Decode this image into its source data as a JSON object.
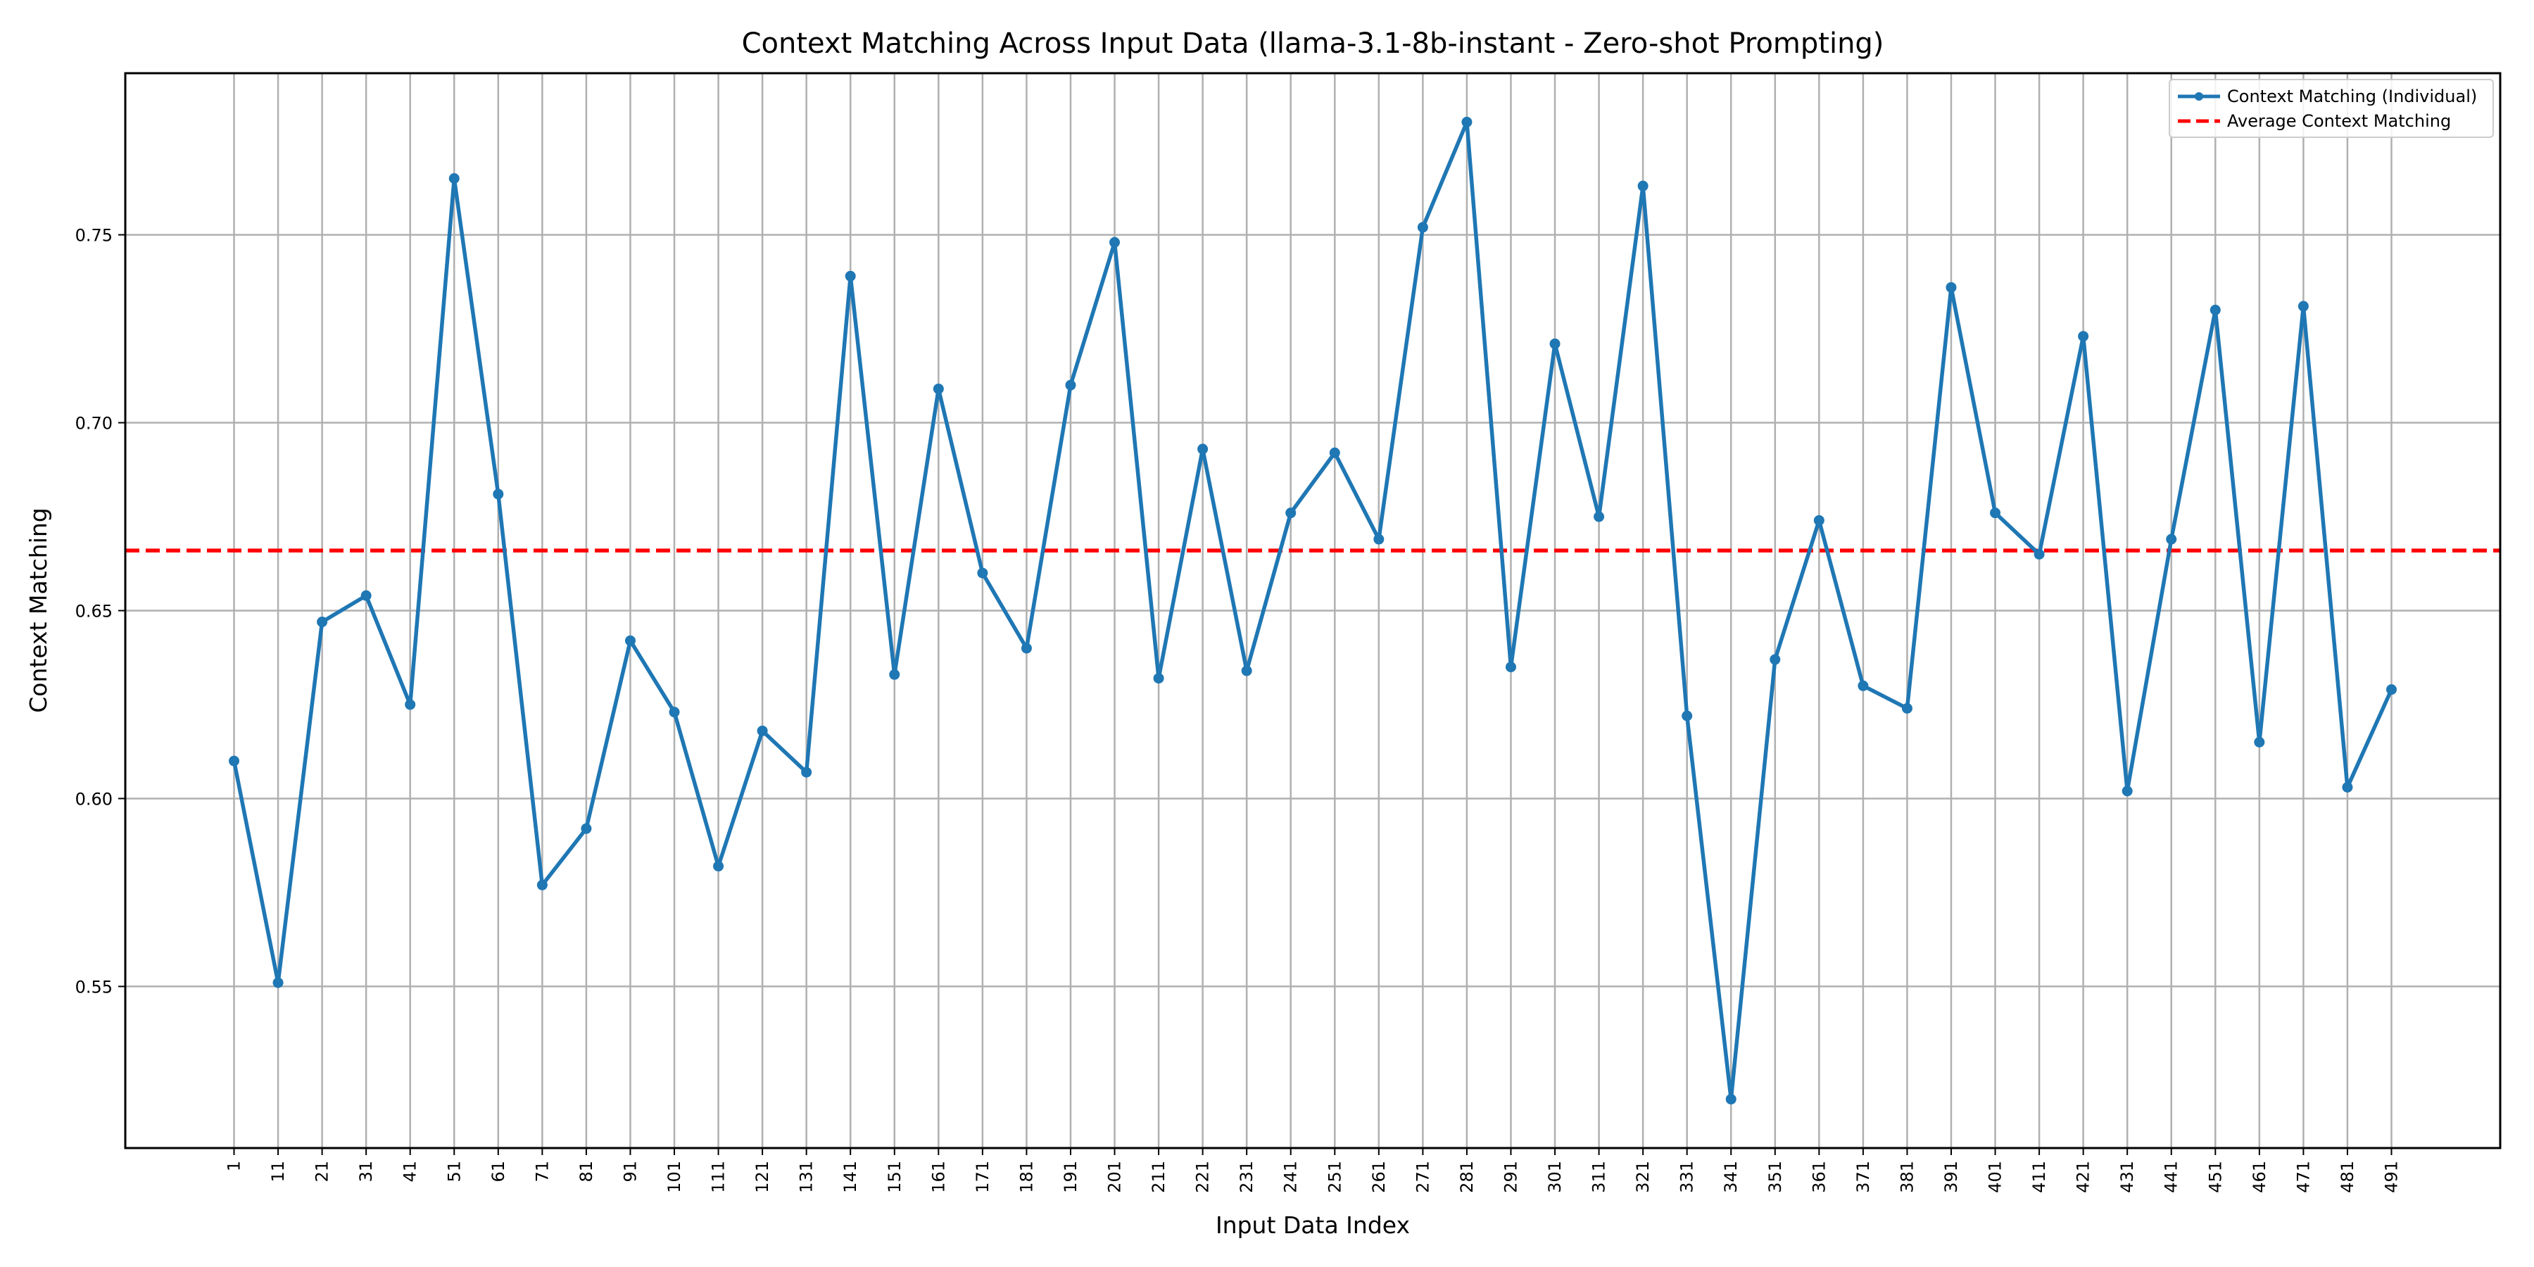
{
  "chart_data": {
    "type": "line",
    "title": "Context Matching Across Input Data (llama-3.1-8b-instant - Zero-shot Prompting)",
    "xlabel": "Input Data Index",
    "ylabel": "Context Matching",
    "x": [
      1,
      11,
      21,
      31,
      41,
      51,
      61,
      71,
      81,
      91,
      101,
      111,
      121,
      131,
      141,
      151,
      161,
      171,
      181,
      191,
      201,
      211,
      221,
      231,
      241,
      251,
      261,
      271,
      281,
      291,
      301,
      311,
      321,
      331,
      341,
      351,
      361,
      371,
      381,
      391,
      401,
      411,
      421,
      431,
      441,
      451,
      461,
      471,
      481,
      491
    ],
    "x_tick_labels": [
      "1",
      "11",
      "21",
      "31",
      "41",
      "51",
      "61",
      "71",
      "81",
      "91",
      "101",
      "111",
      "121",
      "131",
      "141",
      "151",
      "161",
      "171",
      "181",
      "191",
      "201",
      "211",
      "221",
      "231",
      "241",
      "251",
      "261",
      "271",
      "281",
      "291",
      "301",
      "311",
      "321",
      "331",
      "341",
      "351",
      "361",
      "371",
      "381",
      "391",
      "401",
      "411",
      "421",
      "431",
      "441",
      "451",
      "461",
      "471",
      "481",
      "491"
    ],
    "y_ticks": [
      0.55,
      0.6,
      0.65,
      0.7,
      0.75
    ],
    "y_tick_labels": [
      "0.55",
      "0.60",
      "0.65",
      "0.70",
      "0.75"
    ],
    "xlim": [
      -23.7,
      515.7
    ],
    "ylim": [
      0.507,
      0.793
    ],
    "grid": true,
    "legend_position": "top-right",
    "series": [
      {
        "name": "Context Matching (Individual)",
        "kind": "line-with-markers",
        "color": "#1f77b4",
        "values": [
          0.61,
          0.551,
          0.647,
          0.654,
          0.625,
          0.765,
          0.681,
          0.577,
          0.592,
          0.642,
          0.623,
          0.582,
          0.618,
          0.607,
          0.739,
          0.633,
          0.709,
          0.66,
          0.64,
          0.71,
          0.748,
          0.632,
          0.693,
          0.634,
          0.676,
          0.692,
          0.669,
          0.752,
          0.78,
          0.635,
          0.721,
          0.675,
          0.763,
          0.622,
          0.52,
          0.637,
          0.674,
          0.63,
          0.624,
          0.736,
          0.676,
          0.665,
          0.723,
          0.602,
          0.669,
          0.73,
          0.615,
          0.731,
          0.603,
          0.629
        ]
      },
      {
        "name": "Average Context Matching",
        "kind": "dashed-horizontal-line",
        "color": "#ff0000",
        "value": 0.666
      }
    ]
  }
}
